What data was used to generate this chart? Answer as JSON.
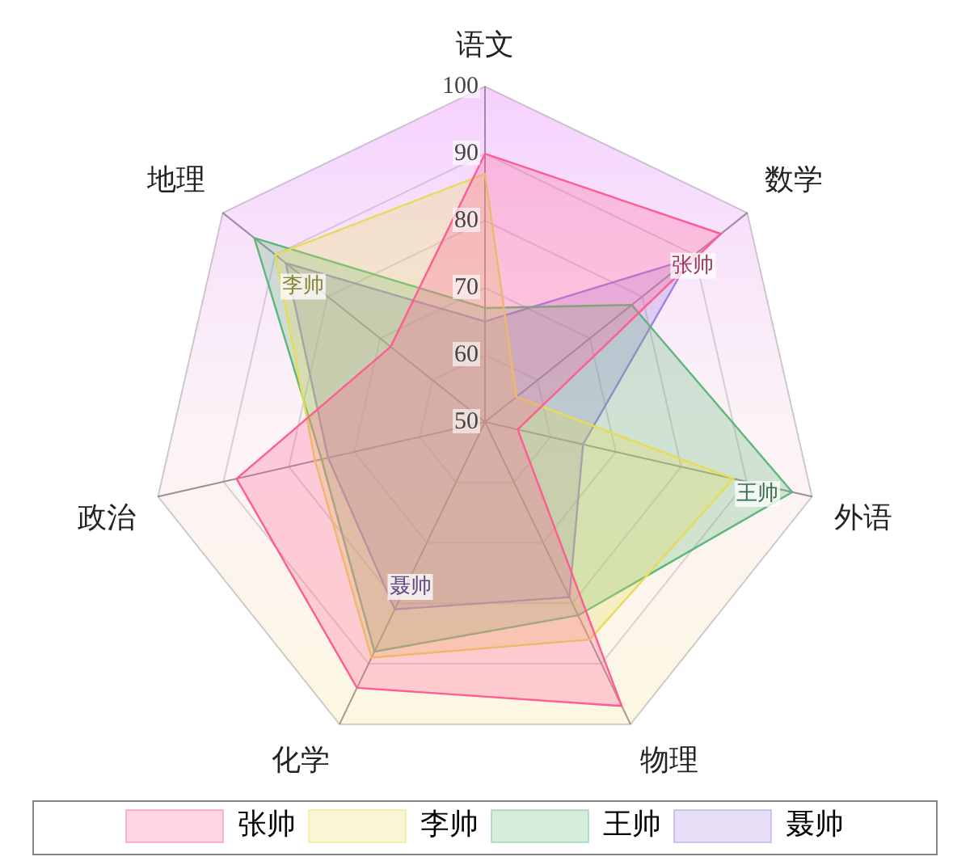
{
  "chart_data": {
    "type": "radar",
    "categories": [
      "语文",
      "数学",
      "外语",
      "物理",
      "化学",
      "政治",
      "地理"
    ],
    "series": [
      {
        "name": "张帅",
        "color": "#ff5c93",
        "values": [
          90,
          95,
          55,
          97,
          94,
          88,
          68
        ]
      },
      {
        "name": "李帅",
        "color": "#e6dc5a",
        "values": [
          87,
          56,
          88,
          86,
          89,
          76,
          90
        ]
      },
      {
        "name": "王帅",
        "color": "#5cb87a",
        "values": [
          67,
          78,
          97,
          82,
          88,
          75,
          94
        ]
      },
      {
        "name": "聂帅",
        "color": "#9f7fe0",
        "values": [
          65,
          89,
          65,
          79,
          81,
          74,
          88
        ]
      }
    ],
    "ylim": [
      50,
      100
    ],
    "yticks": [
      50,
      60,
      70,
      80,
      90,
      100
    ],
    "grid": true,
    "legend": "bottom",
    "marker": "none",
    "annotations": [
      {
        "text": "张帅",
        "x": "数学"
      },
      {
        "text": "李帅",
        "x": "地理"
      },
      {
        "text": "王帅",
        "x": "外语"
      },
      {
        "text": "聂帅",
        "x": "化学"
      }
    ]
  }
}
